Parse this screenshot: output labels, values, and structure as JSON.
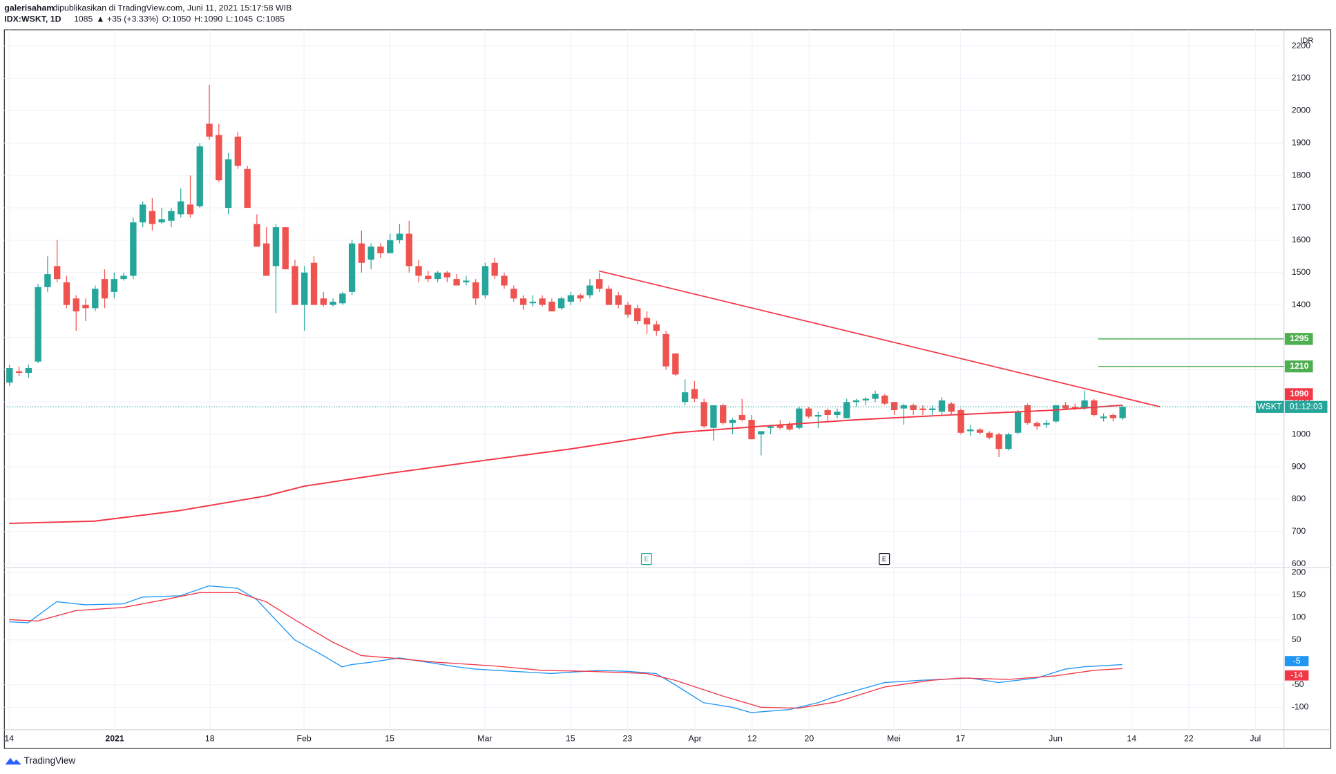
{
  "header": {
    "author": "galerisaham",
    "published": "dipublikasikan di TradingView.com, Juni 11, 2021 15:17:58 WIB"
  },
  "chart_data": {
    "type": "candlestick",
    "symbol": "IDX:WSKT, 1D",
    "change": "▲ +35 (+3.33%)",
    "ohlc_names": [
      "O:",
      "H:",
      "L:",
      "C:"
    ],
    "currency": "IDR",
    "ticker": "WSKT",
    "countdown": "01:12:03",
    "up_color": "#26a69a",
    "down_color": "#ef5350",
    "candles": [
      [
        1160,
        1215,
        1150,
        1205
      ],
      [
        1195,
        1210,
        1180,
        1190
      ],
      [
        1190,
        1215,
        1175,
        1205
      ],
      [
        1225,
        1465,
        1220,
        1455
      ],
      [
        1455,
        1550,
        1440,
        1495
      ],
      [
        1520,
        1600,
        1470,
        1480
      ],
      [
        1470,
        1490,
        1390,
        1400
      ],
      [
        1420,
        1430,
        1320,
        1380
      ],
      [
        1400,
        1420,
        1350,
        1390
      ],
      [
        1390,
        1460,
        1380,
        1450
      ],
      [
        1480,
        1510,
        1390,
        1420
      ],
      [
        1440,
        1500,
        1420,
        1480
      ],
      [
        1480,
        1500,
        1475,
        1490
      ],
      [
        1490,
        1670,
        1480,
        1655
      ],
      [
        1655,
        1720,
        1640,
        1710
      ],
      [
        1690,
        1730,
        1630,
        1650
      ],
      [
        1655,
        1700,
        1650,
        1665
      ],
      [
        1660,
        1700,
        1640,
        1690
      ],
      [
        1680,
        1760,
        1670,
        1720
      ],
      [
        1710,
        1800,
        1670,
        1680
      ],
      [
        1705,
        1900,
        1700,
        1890
      ],
      [
        1960,
        2080,
        1910,
        1920
      ],
      [
        1925,
        1960,
        1780,
        1785
      ],
      [
        1700,
        1870,
        1680,
        1850
      ],
      [
        1920,
        1935,
        1820,
        1830
      ],
      [
        1820,
        1830,
        1700,
        1700
      ],
      [
        1650,
        1680,
        1580,
        1580
      ],
      [
        1590,
        1640,
        1490,
        1490
      ],
      [
        1520,
        1650,
        1375,
        1640
      ],
      [
        1640,
        1640,
        1510,
        1510
      ],
      [
        1520,
        1540,
        1400,
        1400
      ],
      [
        1400,
        1520,
        1320,
        1500
      ],
      [
        1530,
        1550,
        1400,
        1400
      ],
      [
        1420,
        1440,
        1395,
        1400
      ],
      [
        1400,
        1420,
        1395,
        1410
      ],
      [
        1405,
        1440,
        1400,
        1435
      ],
      [
        1440,
        1600,
        1430,
        1590
      ],
      [
        1590,
        1630,
        1500,
        1530
      ],
      [
        1540,
        1590,
        1510,
        1580
      ],
      [
        1580,
        1590,
        1545,
        1560
      ],
      [
        1560,
        1620,
        1560,
        1600
      ],
      [
        1600,
        1650,
        1590,
        1620
      ],
      [
        1620,
        1660,
        1500,
        1520
      ],
      [
        1520,
        1540,
        1470,
        1490
      ],
      [
        1490,
        1505,
        1470,
        1480
      ],
      [
        1480,
        1505,
        1470,
        1500
      ],
      [
        1500,
        1505,
        1470,
        1485
      ],
      [
        1480,
        1495,
        1460,
        1460
      ],
      [
        1470,
        1490,
        1460,
        1475
      ],
      [
        1470,
        1480,
        1400,
        1420
      ],
      [
        1430,
        1530,
        1420,
        1520
      ],
      [
        1530,
        1545,
        1480,
        1490
      ],
      [
        1490,
        1500,
        1450,
        1460
      ],
      [
        1450,
        1460,
        1410,
        1420
      ],
      [
        1420,
        1430,
        1385,
        1400
      ],
      [
        1405,
        1430,
        1395,
        1410
      ],
      [
        1420,
        1430,
        1395,
        1400
      ],
      [
        1410,
        1420,
        1380,
        1380
      ],
      [
        1390,
        1425,
        1385,
        1420
      ],
      [
        1410,
        1440,
        1400,
        1430
      ],
      [
        1430,
        1435,
        1410,
        1420
      ],
      [
        1430,
        1480,
        1420,
        1460
      ],
      [
        1480,
        1500,
        1440,
        1450
      ],
      [
        1450,
        1460,
        1400,
        1400
      ],
      [
        1430,
        1440,
        1390,
        1400
      ],
      [
        1400,
        1410,
        1360,
        1370
      ],
      [
        1390,
        1400,
        1340,
        1350
      ],
      [
        1360,
        1380,
        1310,
        1340
      ],
      [
        1340,
        1350,
        1305,
        1320
      ],
      [
        1310,
        1320,
        1200,
        1210
      ],
      [
        1250,
        1250,
        1180,
        1185
      ],
      [
        1100,
        1170,
        1090,
        1130
      ],
      [
        1140,
        1165,
        1100,
        1110
      ],
      [
        1100,
        1110,
        1020,
        1025
      ],
      [
        1020,
        1090,
        980,
        1090
      ],
      [
        1090,
        1095,
        1030,
        1035
      ],
      [
        1035,
        1050,
        1000,
        1045
      ],
      [
        1060,
        1110,
        1040,
        1045
      ],
      [
        1045,
        1060,
        985,
        985
      ],
      [
        1000,
        1010,
        935,
        1010
      ],
      [
        1020,
        1030,
        1000,
        1025
      ],
      [
        1030,
        1045,
        1015,
        1020
      ],
      [
        1030,
        1040,
        1010,
        1015
      ],
      [
        1020,
        1085,
        1015,
        1080
      ],
      [
        1080,
        1085,
        1050,
        1055
      ],
      [
        1055,
        1070,
        1020,
        1060
      ],
      [
        1075,
        1080,
        1040,
        1060
      ],
      [
        1060,
        1080,
        1050,
        1070
      ],
      [
        1050,
        1110,
        1050,
        1100
      ],
      [
        1100,
        1110,
        1085,
        1105
      ],
      [
        1105,
        1115,
        1090,
        1110
      ],
      [
        1110,
        1135,
        1100,
        1125
      ],
      [
        1120,
        1125,
        1090,
        1095
      ],
      [
        1100,
        1100,
        1060,
        1075
      ],
      [
        1080,
        1095,
        1030,
        1090
      ],
      [
        1090,
        1095,
        1060,
        1075
      ],
      [
        1080,
        1090,
        1060,
        1075
      ],
      [
        1075,
        1090,
        1060,
        1080
      ],
      [
        1070,
        1115,
        1060,
        1105
      ],
      [
        1095,
        1100,
        1060,
        1070
      ],
      [
        1075,
        1080,
        1000,
        1005
      ],
      [
        1010,
        1030,
        995,
        1015
      ],
      [
        1015,
        1020,
        1000,
        1005
      ],
      [
        1005,
        1010,
        985,
        990
      ],
      [
        1000,
        1005,
        930,
        955
      ],
      [
        955,
        1005,
        950,
        1000
      ],
      [
        1005,
        1075,
        1000,
        1070
      ],
      [
        1090,
        1095,
        1030,
        1035
      ],
      [
        1035,
        1040,
        1015,
        1025
      ],
      [
        1030,
        1045,
        1020,
        1035
      ],
      [
        1040,
        1090,
        1035,
        1090
      ],
      [
        1090,
        1100,
        1075,
        1080
      ],
      [
        1085,
        1095,
        1075,
        1080
      ],
      [
        1080,
        1135,
        1075,
        1105
      ],
      [
        1105,
        1110,
        1055,
        1060
      ],
      [
        1050,
        1065,
        1040,
        1055
      ],
      [
        1060,
        1065,
        1040,
        1050
      ],
      [
        1050,
        1090,
        1045,
        1085
      ]
    ],
    "ma": {
      "color": "#f23645",
      "x": [
        0,
        9,
        18,
        27,
        31,
        40,
        50,
        59,
        70,
        79,
        89,
        99,
        110,
        117
      ],
      "values": [
        725,
        732,
        765,
        810,
        840,
        880,
        920,
        955,
        1005,
        1025,
        1045,
        1060,
        1075,
        1090
      ]
    },
    "trendline": {
      "color": "#f23645",
      "x": [
        62,
        121
      ],
      "values": [
        1505,
        1085
      ]
    },
    "levels": {
      "color": "#4caf50",
      "values": [
        1295,
        1210
      ]
    },
    "xlim": [
      -0.5,
      134
    ],
    "xticks": [
      {
        "value": 0,
        "label": "14"
      },
      {
        "value": 11.1,
        "label": "2021"
      },
      {
        "value": 21.1,
        "label": "18"
      },
      {
        "value": 31,
        "label": "Feb"
      },
      {
        "value": 40,
        "label": "15"
      },
      {
        "value": 50,
        "label": "Mar"
      },
      {
        "value": 59,
        "label": "15"
      },
      {
        "value": 65,
        "label": "23"
      },
      {
        "value": 72.1,
        "label": "Apr"
      },
      {
        "value": 78.1,
        "label": "12"
      },
      {
        "value": 84.1,
        "label": "20"
      },
      {
        "value": 93,
        "label": "Mei"
      },
      {
        "value": 100,
        "label": "17"
      },
      {
        "value": 110,
        "label": "Jun"
      },
      {
        "value": 118,
        "label": "14"
      },
      {
        "value": 124,
        "label": "22"
      },
      {
        "value": 131,
        "label": "Jul"
      }
    ],
    "ylim": [
      590,
      2250
    ],
    "yticks": [
      600,
      700,
      800,
      900,
      1000,
      1100,
      1200,
      1300,
      1400,
      1500,
      1600,
      1700,
      1800,
      1900,
      2000,
      2100,
      2200
    ],
    "earnings": {
      "x": [
        67,
        92
      ],
      "label": "E"
    },
    "indicator": {
      "y2lim": [
        -150,
        210
      ],
      "y2ticks": [
        -100,
        -50,
        50,
        100,
        150,
        200
      ],
      "series": [
        {
          "color": "#2196f3",
          "x": [
            0,
            2,
            5,
            8,
            12,
            14,
            18,
            21,
            24,
            26,
            28,
            30,
            33,
            35,
            36,
            38,
            41,
            44,
            47,
            49,
            53,
            57,
            62,
            65,
            68,
            70,
            73,
            76,
            78,
            82,
            85,
            87,
            92,
            96,
            101,
            104,
            108,
            111,
            113,
            117
          ],
          "values": [
            90,
            88,
            135,
            128,
            130,
            145,
            148,
            170,
            165,
            140,
            95,
            50,
            15,
            -10,
            -5,
            0,
            10,
            0,
            -10,
            -15,
            -20,
            -25,
            -18,
            -20,
            -25,
            -50,
            -90,
            -100,
            -112,
            -105,
            -90,
            -75,
            -45,
            -40,
            -35,
            -45,
            -35,
            -15,
            -10,
            -5
          ]
        },
        {
          "color": "#f23645",
          "x": [
            0,
            3,
            7,
            12,
            16,
            20,
            24,
            27,
            30,
            34,
            37,
            40,
            45,
            51,
            56,
            61,
            67,
            70,
            75,
            79,
            83,
            87,
            92,
            97,
            100,
            105,
            110,
            114,
            117
          ],
          "values": [
            95,
            92,
            115,
            122,
            138,
            155,
            155,
            135,
            95,
            45,
            15,
            10,
            0,
            -8,
            -18,
            -20,
            -25,
            -40,
            -75,
            -100,
            -102,
            -88,
            -55,
            -40,
            -35,
            -38,
            -30,
            -18,
            -14
          ]
        }
      ]
    }
  },
  "footer": {
    "brand": "TradingView"
  }
}
